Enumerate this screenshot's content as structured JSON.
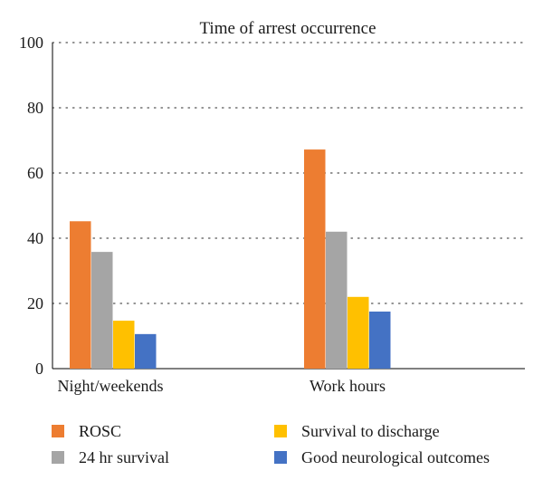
{
  "chart_data": {
    "type": "bar",
    "title": "Time of arrest occurrence",
    "xlabel": "",
    "ylabel": "",
    "categories": [
      "Night/weekends",
      "Work hours"
    ],
    "series": [
      {
        "name": "ROSC",
        "values": [
          45.2,
          67.2
        ],
        "color": "#ED7D31"
      },
      {
        "name": "24 hr survival",
        "values": [
          35.8,
          42.0
        ],
        "color": "#A5A5A5"
      },
      {
        "name": "Survival to discharge",
        "values": [
          14.7,
          22.0
        ],
        "color": "#FFC000"
      },
      {
        "name": "Good neurological outcomes",
        "values": [
          10.6,
          17.5
        ],
        "color": "#4472C4"
      }
    ],
    "ylim": [
      0,
      100
    ],
    "yticks": [
      "0",
      "20",
      "40",
      "60",
      "80",
      "100"
    ],
    "grid": true,
    "grid_style": "dotted",
    "legend_position": "bottom"
  }
}
